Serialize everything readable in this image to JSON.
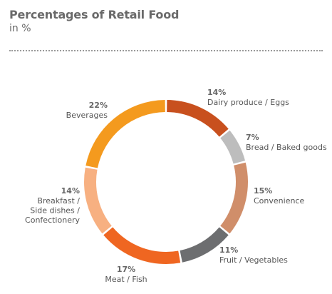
{
  "header": {
    "title": "Percentages of Retail Food",
    "subtitle": "in %"
  },
  "chart_data": {
    "type": "pie",
    "title": "Percentages of Retail Food",
    "subtitle": "in %",
    "unit": "%",
    "donut": true,
    "slices": [
      {
        "label": "Dairy produce / Eggs",
        "value": 14,
        "pct_label": "14%",
        "color": "#C8501E",
        "name_lines": [
          "Dairy produce / Eggs"
        ]
      },
      {
        "label": "Bread / Baked goods",
        "value": 7,
        "pct_label": "7%",
        "color": "#BDBDBD",
        "name_lines": [
          "Bread / Baked goods"
        ]
      },
      {
        "label": "Convenience",
        "value": 15,
        "pct_label": "15%",
        "color": "#D08E6A",
        "name_lines": [
          "Convenience"
        ]
      },
      {
        "label": "Fruit / Vegetables",
        "value": 11,
        "pct_label": "11%",
        "color": "#6D6E70",
        "name_lines": [
          "Fruit / Vegetables"
        ]
      },
      {
        "label": "Meat / Fish",
        "value": 17,
        "pct_label": "17%",
        "color": "#EF6621",
        "name_lines": [
          "Meat / Fish"
        ]
      },
      {
        "label": "Breakfast / Side dishes / Confectionery",
        "value": 14,
        "pct_label": "14%",
        "color": "#F7B081",
        "name_lines": [
          "Breakfast /",
          "Side dishes /",
          "Confectionery"
        ]
      },
      {
        "label": "Beverages",
        "value": 22,
        "pct_label": "22%",
        "color": "#F49A1E",
        "name_lines": [
          "Beverages"
        ]
      }
    ]
  }
}
